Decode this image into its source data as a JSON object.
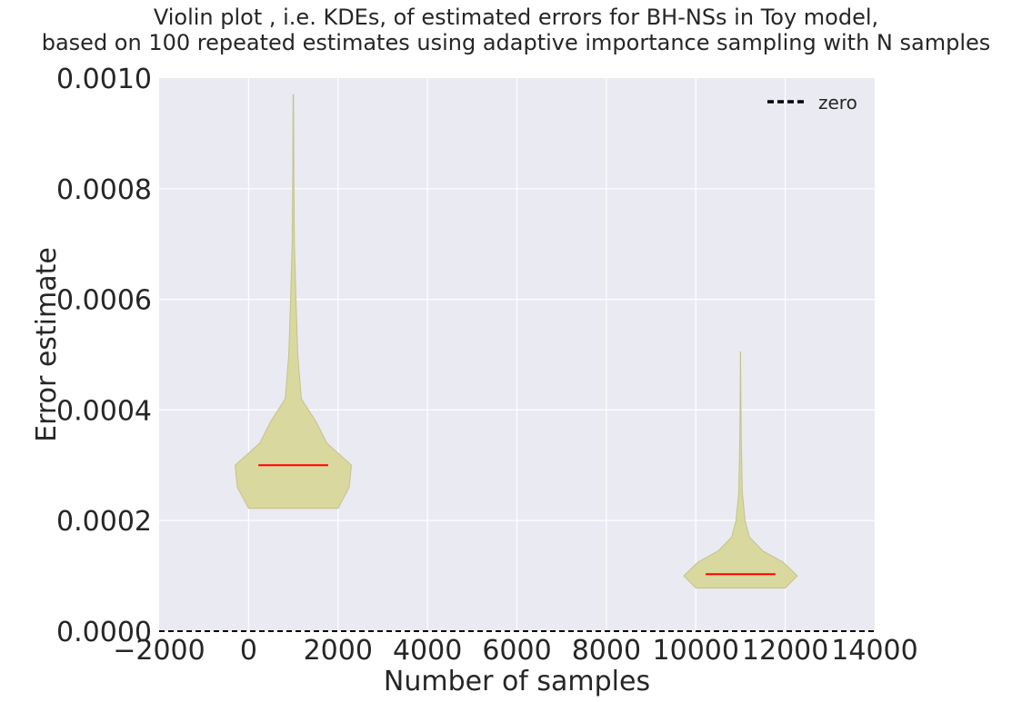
{
  "chart_data": {
    "type": "violin",
    "title_line1": "Violin plot , i.e. KDEs, of estimated errors for BH-NSs  in Toy model,",
    "title_line2": "based on 100 repeated estimates using adaptive importance sampling  with N samples",
    "xlabel": "Number of samples",
    "ylabel": "Error estimate",
    "xlim": [
      -2000,
      14000
    ],
    "ylim": [
      0,
      0.001
    ],
    "xticks": [
      -2000,
      0,
      2000,
      4000,
      6000,
      8000,
      10000,
      12000,
      14000
    ],
    "xtick_labels": [
      "−2000",
      "0",
      "2000",
      "4000",
      "6000",
      "8000",
      "10000",
      "12000",
      "14000"
    ],
    "yticks": [
      0,
      0.0002,
      0.0004,
      0.0006,
      0.0008,
      0.001
    ],
    "ytick_labels": [
      "0.0000",
      "0.0002",
      "0.0004",
      "0.0006",
      "0.0008",
      "0.0010"
    ],
    "grid": true,
    "legend": {
      "position": "top-right",
      "entries": [
        {
          "label": "zero",
          "style": "dashed",
          "color": "#000000"
        }
      ]
    },
    "reference_line": {
      "name": "zero",
      "y": 0
    },
    "colors": {
      "violin_fill": "#d9d89f",
      "violin_edge": "#c4c38a",
      "median": "#ff0000",
      "axes_bg": "#eaeaf2",
      "grid": "#ffffff"
    },
    "violins": [
      {
        "x": 1000,
        "min": 0.000222,
        "max": 0.00097,
        "median": 0.0003,
        "profile": [
          {
            "y": 0.000222,
            "half_width": 1000
          },
          {
            "y": 0.00026,
            "half_width": 1250
          },
          {
            "y": 0.0003,
            "half_width": 1300
          },
          {
            "y": 0.00034,
            "half_width": 750
          },
          {
            "y": 0.00038,
            "half_width": 500
          },
          {
            "y": 0.00042,
            "half_width": 180
          },
          {
            "y": 0.0005,
            "half_width": 100
          },
          {
            "y": 0.0006,
            "half_width": 60
          },
          {
            "y": 0.0007,
            "half_width": 25
          },
          {
            "y": 0.00085,
            "half_width": 10
          },
          {
            "y": 0.00097,
            "half_width": 5
          }
        ]
      },
      {
        "x": 11000,
        "min": 7.8e-05,
        "max": 0.000505,
        "median": 0.000103,
        "profile": [
          {
            "y": 7.8e-05,
            "half_width": 1000
          },
          {
            "y": 0.0001,
            "half_width": 1270
          },
          {
            "y": 0.000125,
            "half_width": 950
          },
          {
            "y": 0.000145,
            "half_width": 500
          },
          {
            "y": 0.00017,
            "half_width": 200
          },
          {
            "y": 0.0002,
            "half_width": 100
          },
          {
            "y": 0.00025,
            "half_width": 40
          },
          {
            "y": 0.00035,
            "half_width": 15
          },
          {
            "y": 0.00045,
            "half_width": 5
          },
          {
            "y": 0.000505,
            "half_width": 2
          }
        ]
      }
    ]
  }
}
